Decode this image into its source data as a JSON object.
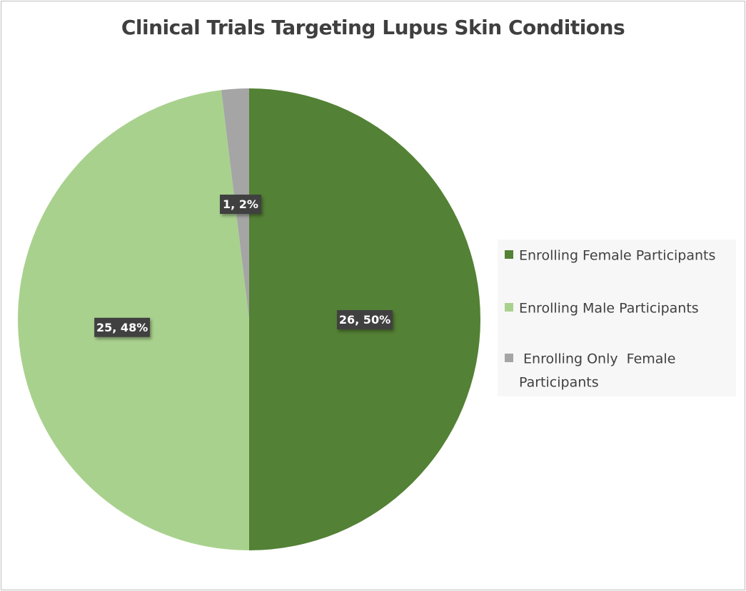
{
  "chart_data": {
    "type": "pie",
    "title": "Clinical Trials Targeting Lupus Skin Conditions",
    "slices": [
      {
        "label": "Enrolling Female Participants",
        "value": 26,
        "percent": 50,
        "data_label": "26, 50%",
        "color": "#538135"
      },
      {
        "label": "Enrolling Male Participants",
        "value": 25,
        "percent": 48,
        "data_label": "25, 48%",
        "color": "#a9d18e"
      },
      {
        "label": " Enrolling Only  Female Participants",
        "value": 1,
        "percent": 2,
        "data_label": "1, 2%",
        "color": "#a5a5a5"
      }
    ],
    "start_angle": "12 o'clock",
    "direction": "clockwise",
    "legend_position": "right"
  }
}
